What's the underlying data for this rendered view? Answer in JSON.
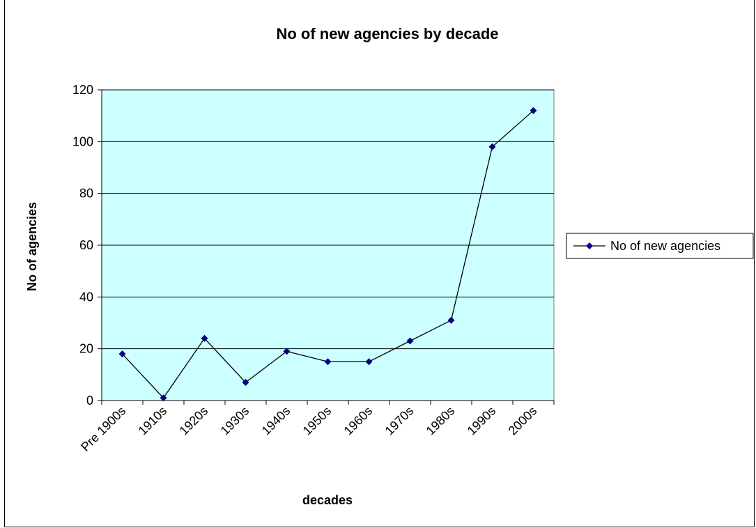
{
  "chart_data": {
    "type": "line",
    "title": "No of new agencies by decade",
    "xlabel": "decades",
    "ylabel": "No of agencies",
    "categories": [
      "Pre 1900s",
      "1910s",
      "1920s",
      "1930s",
      "1940s",
      "1950s",
      "1960s",
      "1970s",
      "1980s",
      "1990s",
      "2000s"
    ],
    "series": [
      {
        "name": "No of new agencies",
        "values": [
          18,
          1,
          24,
          7,
          19,
          15,
          15,
          23,
          31,
          98,
          112
        ]
      }
    ],
    "ylim": [
      0,
      120
    ],
    "yticks": [
      0,
      20,
      40,
      60,
      80,
      100,
      120
    ],
    "grid": true,
    "legend_position": "right",
    "colors": {
      "plot_background": "#ccffff",
      "line": "#000000",
      "marker": "#000080",
      "gridline": "#000000"
    }
  }
}
